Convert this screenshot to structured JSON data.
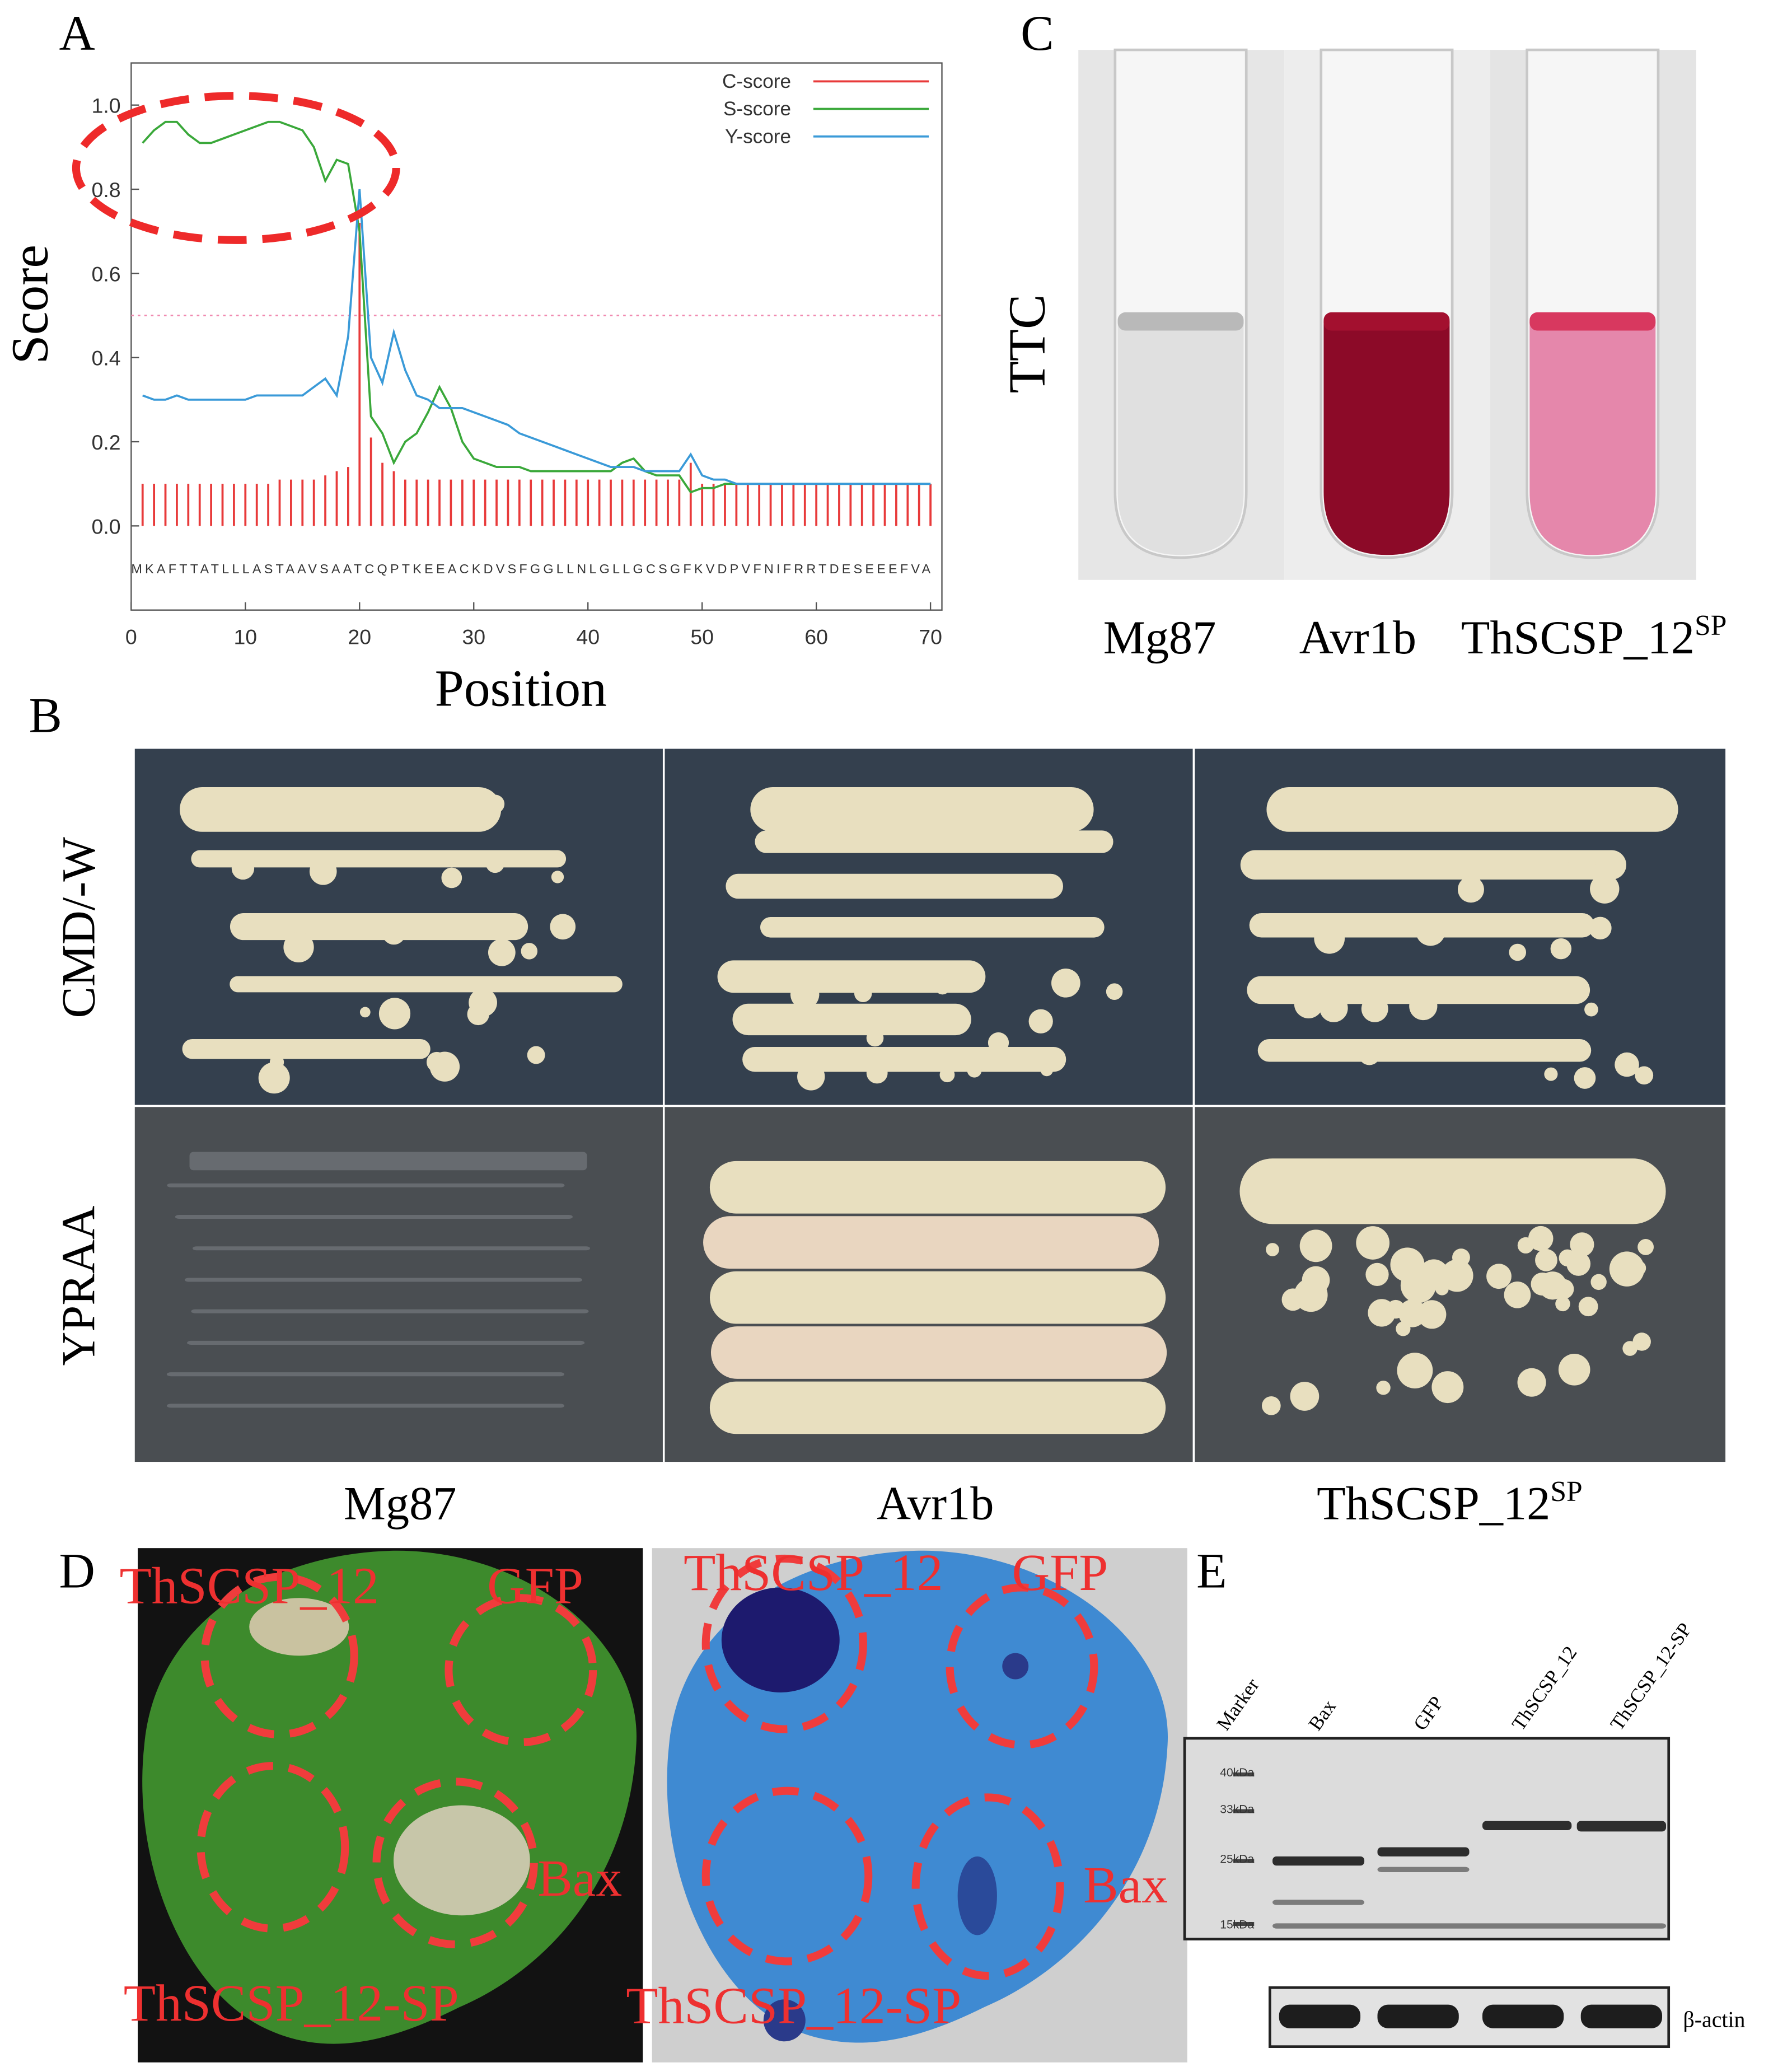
{
  "chart_data": {
    "type": "line",
    "xlabel": "Position",
    "ylabel": "Score",
    "xlim": [
      0,
      71
    ],
    "ylim": [
      -0.2,
      1.1
    ],
    "xticks": [
      0,
      10,
      20,
      30,
      40,
      50,
      60,
      70
    ],
    "yticks": [
      {
        "value": 0,
        "label": "0.0"
      },
      0.2,
      0.4,
      0.6,
      0.8,
      {
        "value": 1,
        "label": "1.0"
      }
    ],
    "threshold": 0.5,
    "threshold_color": "#f08ab0",
    "legend": "top-right",
    "sequence": "MKAFTTATLLLASTAAVSAATCQPTKEEACKDVSFGGLLNLGLLGCSGFKVDPVFNIFRRTDESEEEFVA",
    "x": [
      1,
      2,
      3,
      4,
      5,
      6,
      7,
      8,
      9,
      10,
      11,
      12,
      13,
      14,
      15,
      16,
      17,
      18,
      19,
      20,
      21,
      22,
      23,
      24,
      25,
      26,
      27,
      28,
      29,
      30,
      31,
      32,
      33,
      34,
      35,
      36,
      37,
      38,
      39,
      40,
      41,
      42,
      43,
      44,
      45,
      46,
      47,
      48,
      49,
      50,
      51,
      52,
      53,
      54,
      55,
      56,
      57,
      58,
      59,
      60,
      61,
      62,
      63,
      64,
      65,
      66,
      67,
      68,
      69,
      70
    ],
    "series": [
      {
        "name": "C-score",
        "type": "bar",
        "color": "#e83a3a",
        "values": [
          0.1,
          0.1,
          0.1,
          0.1,
          0.1,
          0.1,
          0.1,
          0.1,
          0.1,
          0.1,
          0.1,
          0.1,
          0.11,
          0.11,
          0.11,
          0.11,
          0.12,
          0.13,
          0.14,
          0.72,
          0.21,
          0.15,
          0.13,
          0.11,
          0.11,
          0.11,
          0.11,
          0.11,
          0.11,
          0.11,
          0.11,
          0.11,
          0.11,
          0.11,
          0.11,
          0.11,
          0.11,
          0.11,
          0.11,
          0.11,
          0.11,
          0.11,
          0.11,
          0.11,
          0.11,
          0.11,
          0.11,
          0.11,
          0.15,
          0.1,
          0.1,
          0.1,
          0.1,
          0.1,
          0.1,
          0.1,
          0.1,
          0.1,
          0.1,
          0.1,
          0.1,
          0.1,
          0.1,
          0.1,
          0.1,
          0.1,
          0.1,
          0.1,
          0.1,
          0.1
        ]
      },
      {
        "name": "S-score",
        "type": "line",
        "color": "#3aa83a",
        "values": [
          0.91,
          0.94,
          0.96,
          0.96,
          0.93,
          0.91,
          0.91,
          0.92,
          0.93,
          0.94,
          0.95,
          0.96,
          0.96,
          0.95,
          0.94,
          0.9,
          0.82,
          0.87,
          0.86,
          0.7,
          0.26,
          0.22,
          0.15,
          0.2,
          0.22,
          0.27,
          0.33,
          0.28,
          0.2,
          0.16,
          0.15,
          0.14,
          0.14,
          0.14,
          0.13,
          0.13,
          0.13,
          0.13,
          0.13,
          0.13,
          0.13,
          0.13,
          0.15,
          0.16,
          0.13,
          0.12,
          0.12,
          0.12,
          0.08,
          0.09,
          0.09,
          0.1,
          0.1,
          0.1,
          0.1,
          0.1,
          0.1,
          0.1,
          0.1,
          0.1,
          0.1,
          0.1,
          0.1,
          0.1,
          0.1,
          0.1,
          0.1,
          0.1,
          0.1,
          0.1
        ]
      },
      {
        "name": "Y-score",
        "type": "line",
        "color": "#3a9ad8",
        "values": [
          0.31,
          0.3,
          0.3,
          0.31,
          0.3,
          0.3,
          0.3,
          0.3,
          0.3,
          0.3,
          0.31,
          0.31,
          0.31,
          0.31,
          0.31,
          0.33,
          0.35,
          0.31,
          0.45,
          0.8,
          0.4,
          0.34,
          0.46,
          0.37,
          0.31,
          0.3,
          0.28,
          0.28,
          0.28,
          0.27,
          0.26,
          0.25,
          0.24,
          0.22,
          0.21,
          0.2,
          0.19,
          0.18,
          0.17,
          0.16,
          0.15,
          0.14,
          0.14,
          0.14,
          0.13,
          0.13,
          0.13,
          0.13,
          0.17,
          0.12,
          0.11,
          0.11,
          0.1,
          0.1,
          0.1,
          0.1,
          0.1,
          0.1,
          0.1,
          0.1,
          0.1,
          0.1,
          0.1,
          0.1,
          0.1,
          0.1,
          0.1,
          0.1,
          0.1,
          0.1
        ]
      }
    ]
  },
  "panel_labels": [
    "A",
    "B",
    "C",
    "D",
    "E"
  ],
  "panel_b": {
    "rows": [
      "CMD/-W",
      "YPRAA"
    ],
    "columns": [
      {
        "text": "Mg87"
      },
      {
        "text": "Avr1b"
      },
      {
        "text": "ThSCSP_12",
        "sup": "SP"
      }
    ]
  },
  "panel_c": {
    "label": "TTC",
    "tubes": [
      {
        "text": "Mg87"
      },
      {
        "text": "Avr1b"
      },
      {
        "text": "ThSCSP_12",
        "sup": "SP"
      }
    ]
  },
  "panel_d": {
    "leaves": [
      {
        "labels": [
          "ThSCSP_12",
          "GFP",
          "Bax",
          "ThSCSP_12-SP"
        ]
      },
      {
        "labels": [
          "ThSCSP_12",
          "GFP",
          "Bax",
          "ThSCSP_12-SP"
        ]
      }
    ]
  },
  "panel_e": {
    "lanes": [
      "Marker",
      "Bax",
      "GFP",
      "ThSCSP_12",
      "ThSCSP_12-SP"
    ],
    "markers": [
      "40kDa",
      "33kDa",
      "25kDa",
      "15kDa"
    ],
    "loading": "β-actin"
  }
}
